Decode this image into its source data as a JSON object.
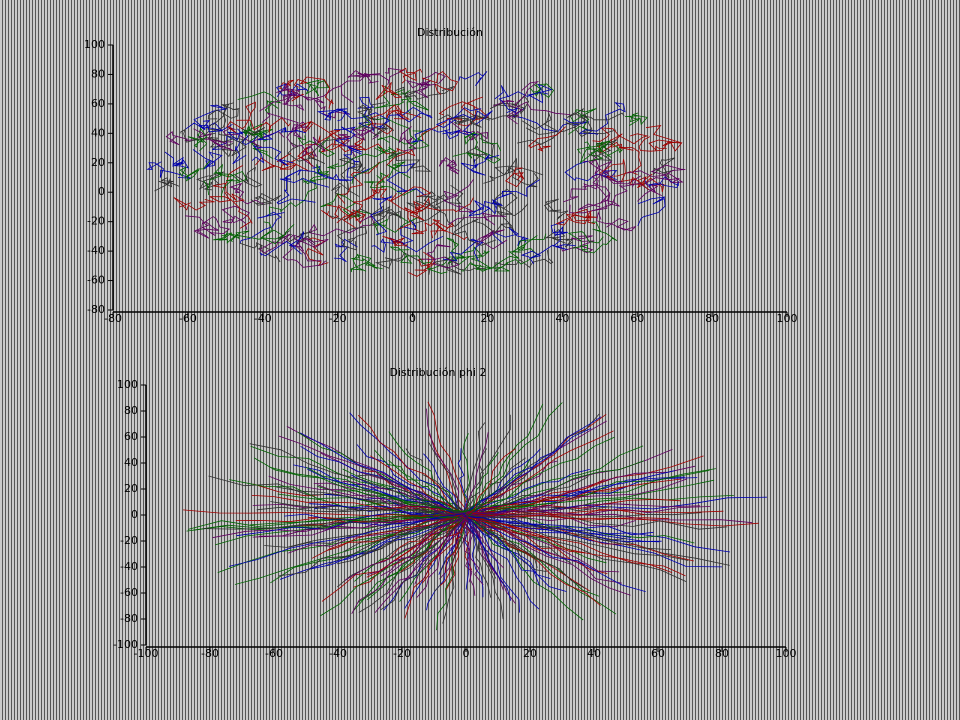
{
  "chart_data": [
    {
      "type": "line",
      "title": "Distribución",
      "xlim": [
        -80,
        100
      ],
      "xticks": [
        -80,
        -60,
        -40,
        -20,
        0,
        20,
        40,
        60,
        80,
        100
      ],
      "ylim": [
        -80,
        100
      ],
      "yticks": [
        -80,
        -60,
        -40,
        -20,
        0,
        20,
        40,
        60,
        80,
        100
      ]
    },
    {
      "type": "line",
      "title": "Distribución phi 2",
      "xlim": [
        -100,
        100
      ],
      "xticks": [
        -100,
        -80,
        -60,
        -40,
        -20,
        0,
        20,
        40,
        60,
        80,
        100
      ],
      "ylim": [
        -100,
        100
      ],
      "yticks": [
        -100,
        -80,
        -60,
        -40,
        -20,
        0,
        20,
        40,
        60,
        80,
        100
      ]
    }
  ]
}
